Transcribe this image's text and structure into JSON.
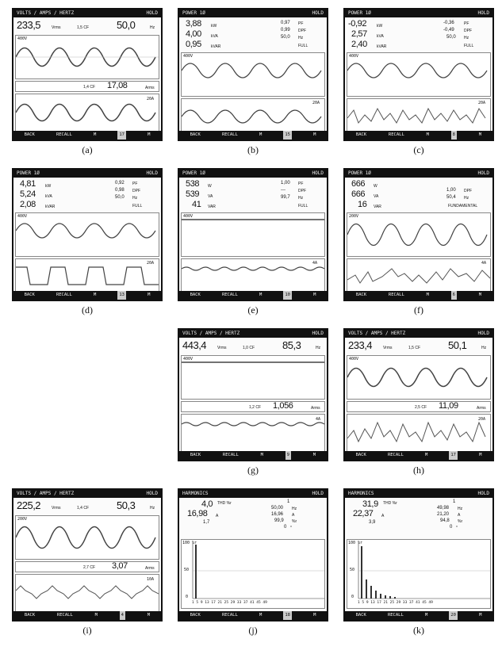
{
  "panels": {
    "a": {
      "caption": "(a)",
      "header": {
        "left": "VOLTS / AMPS / HERTZ",
        "right": "HOLD"
      },
      "volts": "233,5",
      "volts_unit": "Vrms",
      "cf1": "1,5 CF",
      "freq": "50,0",
      "freq_unit": "Hz",
      "ch1": "400V",
      "cf2": "1,4 CF",
      "amps": "17,08",
      "amps_unit": "Arms",
      "ch2": "20A",
      "footer": [
        "BACK",
        "RECALL",
        "M",
        "17",
        "M"
      ]
    },
    "b": {
      "caption": "(b)",
      "header": {
        "left": "POWER 1Ø",
        "right": "HOLD"
      },
      "l1": "3,88",
      "l1u": "kW",
      "l2": "4,00",
      "l2u": "kVA",
      "l3": "0,95",
      "l3u": "kVAR",
      "r1": "0,97",
      "r1u": "PF",
      "r2": "0,99",
      "r2u": "DPF",
      "r3": "50,0",
      "r3u": "Hz",
      "r4": "FULL",
      "ch1": "400V",
      "ch2": "20A",
      "footer": [
        "BACK",
        "RECALL",
        "M",
        "15",
        "M"
      ]
    },
    "c": {
      "caption": "(c)",
      "header": {
        "left": "POWER 1Ø",
        "right": "HOLD"
      },
      "l1": "-0,92",
      "l1u": "kW",
      "l2": "2,57",
      "l2u": "kVA",
      "l3": "2,40",
      "l3u": "kVAR",
      "r1": "-0,36",
      "r1u": "PF",
      "r2": "-0,49",
      "r2u": "DPF",
      "r3": "50,0",
      "r3u": "Hz",
      "r4": "FULL",
      "ch1": "400V",
      "ch2": "20A",
      "footer": [
        "BACK",
        "RECALL",
        "M",
        "8",
        "M"
      ]
    },
    "d": {
      "caption": "(d)",
      "header": {
        "left": "POWER 1Ø",
        "right": "HOLD"
      },
      "l1": "4,81",
      "l1u": "kW",
      "l2": "5,24",
      "l2u": "kVA",
      "l3": "2,08",
      "l3u": "kVAR",
      "r1": "0,92",
      "r1u": "PF",
      "r2": "0,98",
      "r2u": "DPF",
      "r3": "50,0",
      "r3u": "Hz",
      "r4": "FULL",
      "ch1": "400V",
      "ch2": "20A",
      "footer": [
        "BACK",
        "RECALL",
        "M",
        "13",
        "M"
      ]
    },
    "e": {
      "caption": "(e)",
      "header": {
        "left": "POWER 1Ø",
        "right": "HOLD"
      },
      "l1": "538",
      "l1u": "W",
      "l2": "539",
      "l2u": "VA",
      "l3": "41",
      "l3u": "VAR",
      "r1": "1,00",
      "r1u": "PF",
      "r2": "---",
      "r2u": "DPF",
      "r3": "99,7",
      "r3u": "Hz",
      "r4": "FULL",
      "ch1": "400V",
      "ch2": "4A",
      "footer": [
        "BACK",
        "RECALL",
        "M",
        "10",
        "M"
      ]
    },
    "f": {
      "caption": "(f)",
      "header": {
        "left": "POWER 1Ø",
        "right": "HOLD"
      },
      "l1": "666",
      "l1u": "W",
      "l2": "666",
      "l2u": "VA",
      "l3": "16",
      "l3u": "VAR",
      "r1": "",
      "r1u": "",
      "r2": "1,00",
      "r2u": "DPF",
      "r3": "50,4",
      "r3u": "Hz",
      "r4": "FUNDAMENTAL",
      "ch1": "200V",
      "ch2": "4A",
      "footer": [
        "BACK",
        "RECALL",
        "M",
        "6",
        "M"
      ]
    },
    "g": {
      "caption": "(g)",
      "header": {
        "left": "VOLTS / AMPS / HERTZ",
        "right": "HOLD"
      },
      "volts": "443,4",
      "volts_unit": "Vrms",
      "cf1": "1,0 CF",
      "freq": "85,3",
      "freq_unit": "Hz",
      "ch1": "400V",
      "cf2": "1,2 CF",
      "amps": "1,056",
      "amps_unit": "Arms",
      "ch2": "4A",
      "footer": [
        "BACK",
        "RECALL",
        "M",
        "9",
        "M"
      ]
    },
    "h": {
      "caption": "(h)",
      "header": {
        "left": "VOLTS / AMPS / HERTZ",
        "right": "HOLD"
      },
      "volts": "233,4",
      "volts_unit": "Vrms",
      "cf1": "1,5 CF",
      "freq": "50,1",
      "freq_unit": "Hz",
      "ch1": "400V",
      "cf2": "2,5 CF",
      "amps": "11,09",
      "amps_unit": "Arms",
      "ch2": "20A",
      "footer": [
        "BACK",
        "RECALL",
        "M",
        "17",
        "M"
      ]
    },
    "i": {
      "caption": "(i)",
      "header": {
        "left": "VOLTS / AMPS / HERTZ",
        "right": "HOLD"
      },
      "volts": "225,2",
      "volts_unit": "Vrms",
      "cf1": "1,4 CF",
      "freq": "50,3",
      "freq_unit": "Hz",
      "ch1": "200V",
      "cf2": "2,7 CF",
      "amps": "3,07",
      "amps_unit": "Arms",
      "ch2": "10A",
      "footer": [
        "BACK",
        "RECALL",
        "M",
        "4",
        "M"
      ]
    },
    "j": {
      "caption": "(j)",
      "header": {
        "left": "HARMONICS",
        "right": "HOLD"
      },
      "thd": "4,0",
      "thd_unit": "THD %r",
      "amps": "16,98",
      "amps_unit": "A",
      "cf": "1,7",
      "h": "1",
      "freq": "50,00",
      "freq_unit": "Hz",
      "amps2": "16,96",
      "amps2_unit": "A",
      "pct": "99,9",
      "pct_unit": "%r",
      "deg": "0",
      "deg_unit": "°",
      "yticks": [
        "100 %r",
        "50",
        "0"
      ],
      "xticks": "1 5 9 13 17 21 25 29 33 37 41 45 49",
      "footer": [
        "BACK",
        "RECALL",
        "M",
        "18",
        "M"
      ]
    },
    "k": {
      "caption": "(k)",
      "header": {
        "left": "HARMONICS",
        "right": "HOLD"
      },
      "thd": "31,9",
      "thd_unit": "THD %r",
      "amps": "22,37",
      "amps_unit": "A",
      "cf": "3,9",
      "h": "1",
      "freq": "49,98",
      "freq_unit": "Hz",
      "amps2": "21,20",
      "amps2_unit": "A",
      "pct": "94,8",
      "pct_unit": "%r",
      "deg": "0",
      "deg_unit": "°",
      "yticks": [
        "100 %r",
        "50",
        "0"
      ],
      "xticks": "1 5 9 13 17 21 25 29 33 37 41 45 49",
      "footer": [
        "BACK",
        "RECALL",
        "M",
        "20",
        "M"
      ]
    }
  }
}
